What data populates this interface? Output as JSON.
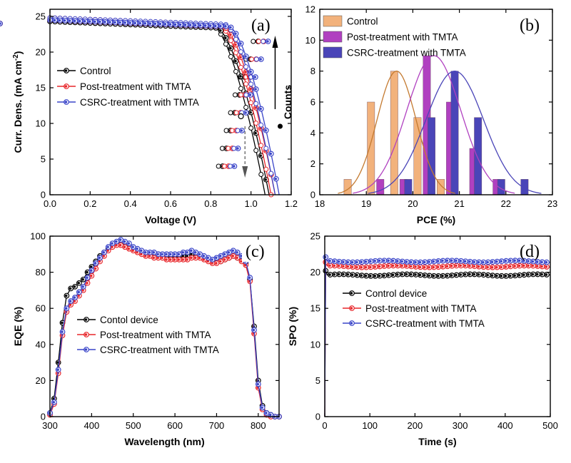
{
  "chart_data": [
    {
      "type": "line",
      "panel_label": "(a)",
      "xlabel": "Voltage (V)",
      "ylabel_main": "Curr. Dens. (mA cm",
      "ylabel_sup": "-2",
      "ylabel_close": ")",
      "xlim": [
        0.0,
        1.2
      ],
      "ylim": [
        0,
        26
      ],
      "xticks": [
        "0.0",
        "0.2",
        "0.4",
        "0.6",
        "0.8",
        "1.0",
        "1.2"
      ],
      "xtick_values": [
        0.0,
        0.2,
        0.4,
        0.6,
        0.8,
        1.0,
        1.2
      ],
      "yticks": [
        "0",
        "5",
        "10",
        "15",
        "20",
        "25"
      ],
      "ytick_values": [
        0,
        5,
        10,
        15,
        20,
        25
      ],
      "legend_position": "center-left",
      "annotations": [
        "forward scan (solid arrow)",
        "reverse scan (dashed arrow)"
      ],
      "series": [
        {
          "name": "Control",
          "color": "#000000",
          "jsc": 24.3,
          "voc": 1.09,
          "knee": 0.83,
          "reverse_jsc": 24.6,
          "reverse_voc": 1.07
        },
        {
          "name": "Post-treatment with TMTA",
          "color": "#e8262a",
          "jsc": 24.5,
          "voc": 1.12,
          "knee": 0.86,
          "reverse_jsc": 24.8,
          "reverse_voc": 1.1
        },
        {
          "name": "CSRC-treatment with TMTA",
          "color": "#3a45c9",
          "jsc": 24.5,
          "voc": 1.14,
          "knee": 0.89,
          "reverse_jsc": 24.8,
          "reverse_voc": 1.12
        }
      ]
    },
    {
      "type": "bar",
      "panel_label": "(b)",
      "xlabel": "PCE (%)",
      "ylabel": "Counts",
      "xlim": [
        18,
        23
      ],
      "ylim": [
        0,
        12
      ],
      "xticks": [
        "18",
        "19",
        "20",
        "21",
        "22",
        "23"
      ],
      "xtick_values": [
        18,
        19,
        20,
        21,
        22,
        23
      ],
      "yticks": [
        "0",
        "2",
        "4",
        "6",
        "8",
        "10",
        "12"
      ],
      "ytick_values": [
        0,
        2,
        4,
        6,
        8,
        10,
        12
      ],
      "legend_position": "top-left",
      "series": [
        {
          "name": "Control",
          "color": "#f2b27c",
          "bars": [
            [
              18.6,
              1
            ],
            [
              19.1,
              6
            ],
            [
              19.6,
              8
            ],
            [
              20.1,
              5
            ],
            [
              20.6,
              1
            ]
          ],
          "gauss": {
            "mean": 19.65,
            "sigma": 0.42,
            "peak": 8
          }
        },
        {
          "name": "Post-treatment with TMTA",
          "color": "#b040c0",
          "bars": [
            [
              19.3,
              1
            ],
            [
              19.8,
              1
            ],
            [
              20.3,
              9
            ],
            [
              20.8,
              6
            ],
            [
              21.3,
              3
            ],
            [
              21.8,
              1
            ]
          ],
          "gauss": {
            "mean": 20.45,
            "sigma": 0.58,
            "peak": 9
          }
        },
        {
          "name": "CSRC-treatment with TMTA",
          "color": "#4a45b8",
          "bars": [
            [
              19.9,
              1
            ],
            [
              20.4,
              5
            ],
            [
              20.9,
              8
            ],
            [
              21.4,
              5
            ],
            [
              21.9,
              1
            ],
            [
              22.4,
              1
            ]
          ],
          "gauss": {
            "mean": 20.9,
            "sigma": 0.62,
            "peak": 8
          }
        }
      ]
    },
    {
      "type": "line",
      "panel_label": "(c)",
      "xlabel": "Wavelength (nm)",
      "ylabel": "EQE (%)",
      "xlim": [
        300,
        850
      ],
      "ylim": [
        0,
        100
      ],
      "xticks": [
        "300",
        "400",
        "500",
        "600",
        "700",
        "800"
      ],
      "xtick_values": [
        300,
        400,
        500,
        600,
        700,
        800
      ],
      "yticks": [
        "0",
        "20",
        "40",
        "60",
        "80",
        "100"
      ],
      "ytick_values": [
        0,
        20,
        40,
        60,
        80,
        100
      ],
      "legend_position": "center-left",
      "x": [
        300,
        310,
        320,
        330,
        340,
        350,
        360,
        370,
        380,
        390,
        400,
        410,
        420,
        430,
        440,
        450,
        460,
        470,
        480,
        490,
        500,
        510,
        520,
        530,
        540,
        550,
        560,
        570,
        580,
        590,
        600,
        610,
        620,
        630,
        640,
        650,
        660,
        670,
        680,
        690,
        700,
        710,
        720,
        730,
        740,
        750,
        760,
        770,
        780,
        790,
        800,
        810,
        820,
        830,
        840,
        850
      ],
      "series": [
        {
          "name": "Contol device",
          "color": "#000000",
          "values": [
            2,
            10,
            30,
            52,
            67,
            71,
            72,
            74,
            76,
            80,
            83,
            86,
            89,
            91,
            93,
            95,
            96,
            97,
            96,
            95,
            93,
            92,
            91,
            90,
            90,
            90,
            90,
            89,
            89,
            89,
            89,
            89,
            89,
            89,
            90,
            90,
            89,
            88,
            87,
            86,
            86,
            86,
            87,
            88,
            89,
            88,
            87,
            85,
            76,
            50,
            20,
            6,
            2,
            1,
            0,
            0
          ]
        },
        {
          "name": "Post-treatment with TMTA",
          "color": "#e8262a",
          "values": [
            1,
            7,
            24,
            45,
            58,
            62,
            64,
            67,
            70,
            74,
            78,
            82,
            86,
            89,
            92,
            94,
            95,
            95,
            94,
            93,
            92,
            91,
            90,
            89,
            89,
            88,
            88,
            88,
            87,
            87,
            87,
            87,
            87,
            87,
            88,
            88,
            88,
            87,
            86,
            85,
            85,
            86,
            87,
            88,
            89,
            88,
            86,
            84,
            75,
            46,
            16,
            4,
            1,
            0,
            0,
            0
          ]
        },
        {
          "name": "CSRC-treatment with TMTA",
          "color": "#3a45c9",
          "values": [
            2,
            8,
            26,
            47,
            60,
            64,
            66,
            69,
            72,
            77,
            81,
            85,
            88,
            91,
            94,
            96,
            97,
            98,
            97,
            96,
            94,
            93,
            92,
            91,
            91,
            91,
            90,
            90,
            90,
            90,
            90,
            90,
            91,
            91,
            92,
            91,
            90,
            89,
            88,
            87,
            88,
            89,
            90,
            91,
            92,
            91,
            89,
            86,
            77,
            48,
            18,
            5,
            2,
            1,
            0,
            0
          ]
        }
      ]
    },
    {
      "type": "line",
      "panel_label": "(d)",
      "xlabel": "Time (s)",
      "ylabel": "SPO (%)",
      "xlim": [
        0,
        500
      ],
      "ylim": [
        0,
        25
      ],
      "xticks": [
        "0",
        "100",
        "200",
        "300",
        "400",
        "500"
      ],
      "xtick_values": [
        0,
        100,
        200,
        300,
        400,
        500
      ],
      "yticks": [
        "0",
        "5",
        "10",
        "15",
        "20",
        "25"
      ],
      "ytick_values": [
        0,
        5,
        10,
        15,
        20,
        25
      ],
      "legend_position": "center",
      "series": [
        {
          "name": "Control device",
          "color": "#000000",
          "steady": 19.6
        },
        {
          "name": "Post-treatment with TMTA",
          "color": "#e8262a",
          "steady": 20.8
        },
        {
          "name": "CSRC-treatment with TMTA",
          "color": "#3a45c9",
          "steady": 21.5
        }
      ]
    }
  ]
}
